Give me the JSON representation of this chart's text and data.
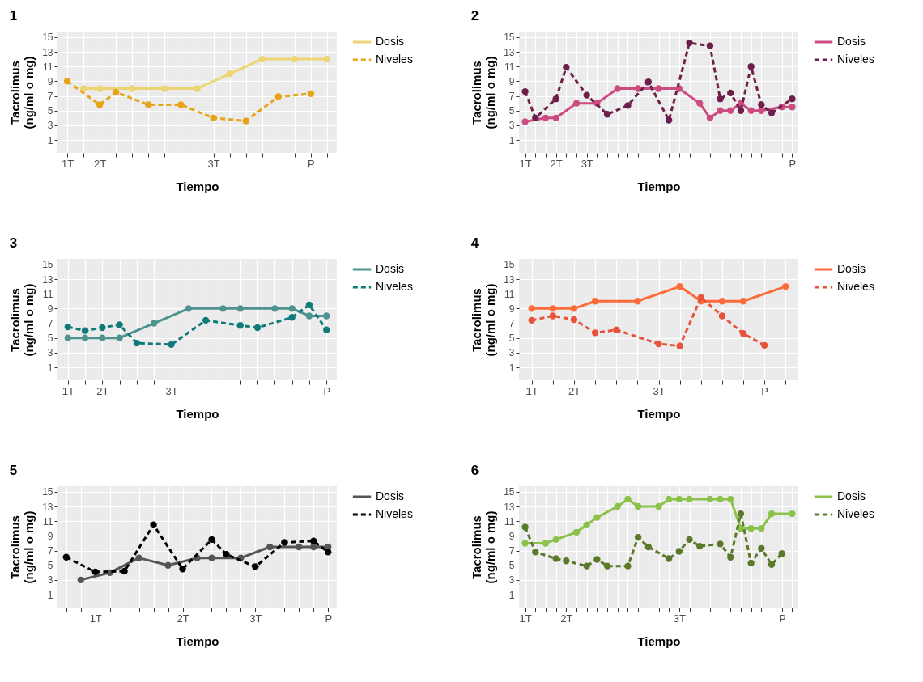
{
  "chart_data": [
    {
      "type": "line",
      "title": "1",
      "xlabel": "Tiempo",
      "ylabel": "Tacrolimus\n(ng/ml o mg)",
      "categories": [
        "1T",
        null,
        "2T",
        null,
        null,
        null,
        null,
        null,
        null,
        "3T",
        null,
        null,
        null,
        null,
        null,
        "P",
        null
      ],
      "ylim": [
        -0.75,
        15.75
      ],
      "yticks": [
        1,
        3,
        5,
        7,
        9,
        11,
        13,
        15
      ],
      "grid": true,
      "legend": "right",
      "marker": "circle",
      "series": [
        {
          "name": "Dosis",
          "color": "#ecd572",
          "line_style": "solid",
          "values": [
            null,
            8,
            8,
            null,
            8,
            null,
            8,
            null,
            8,
            null,
            10,
            null,
            12,
            null,
            12,
            null,
            12
          ]
        },
        {
          "name": "Niveles",
          "color": "#e8a317",
          "line_style": "dashed",
          "values": [
            9,
            null,
            5.8,
            7.5,
            null,
            5.8,
            null,
            5.8,
            null,
            4.0,
            null,
            3.6,
            null,
            6.9,
            null,
            7.3,
            null
          ]
        }
      ]
    },
    {
      "type": "line",
      "title": "2",
      "xlabel": "Tiempo",
      "ylabel": "Tacrolimus\n(ng/ml o mg)",
      "categories": [
        "1T",
        null,
        null,
        "2T",
        null,
        null,
        "3T",
        null,
        null,
        null,
        null,
        null,
        null,
        null,
        null,
        null,
        null,
        null,
        null,
        null,
        null,
        null,
        null,
        null,
        null,
        null,
        "P"
      ],
      "ylim": [
        -0.75,
        15.75
      ],
      "yticks": [
        1,
        3,
        5,
        7,
        9,
        11,
        13,
        15
      ],
      "grid": true,
      "legend": "right",
      "marker": "circle",
      "series": [
        {
          "name": "Dosis",
          "color": "#cc4c82",
          "line_style": "solid",
          "values": [
            3.5,
            null,
            4,
            4,
            null,
            6,
            null,
            6,
            null,
            8,
            null,
            8,
            null,
            8,
            null,
            8,
            null,
            6,
            4,
            5,
            5,
            6,
            5,
            5,
            null,
            5.5,
            5.5
          ]
        },
        {
          "name": "Niveles",
          "color": "#6e1e4b",
          "line_style": "dashed",
          "values": [
            7.6,
            4.0,
            null,
            6.6,
            10.9,
            null,
            7.1,
            null,
            4.5,
            null,
            5.7,
            null,
            8.9,
            null,
            3.7,
            null,
            14.2,
            null,
            13.8,
            6.6,
            7.4,
            5.0,
            11.0,
            5.8,
            4.7,
            null,
            6.6
          ]
        }
      ]
    },
    {
      "type": "line",
      "title": "3",
      "xlabel": "Tiempo",
      "ylabel": "Tacrolimus\n(ng/ml o mg)",
      "categories": [
        "1T",
        null,
        "2T",
        null,
        null,
        null,
        "3T",
        null,
        null,
        null,
        null,
        null,
        null,
        null,
        null,
        "P"
      ],
      "ylim": [
        -0.75,
        15.75
      ],
      "yticks": [
        1,
        3,
        5,
        7,
        9,
        11,
        13,
        15
      ],
      "grid": true,
      "legend": "right",
      "marker": "circle",
      "series": [
        {
          "name": "Dosis",
          "color": "#4f9391",
          "line_style": "solid",
          "values": [
            5,
            5,
            5,
            5,
            null,
            7,
            null,
            9,
            null,
            9,
            9,
            null,
            9,
            9,
            8,
            8
          ]
        },
        {
          "name": "Niveles",
          "color": "#0f7a78",
          "line_style": "dashed",
          "values": [
            6.5,
            6.0,
            6.4,
            6.8,
            4.3,
            null,
            4.1,
            null,
            7.4,
            null,
            6.7,
            6.4,
            null,
            7.8,
            9.5,
            6.1
          ]
        }
      ]
    },
    {
      "type": "line",
      "title": "4",
      "xlabel": "Tiempo",
      "ylabel": "Tacrolimus\n(ng/ml o mg)",
      "categories": [
        "1T",
        null,
        "2T",
        null,
        null,
        null,
        "3T",
        null,
        null,
        null,
        null,
        "P",
        null
      ],
      "ylim": [
        -0.75,
        15.75
      ],
      "yticks": [
        1,
        3,
        5,
        7,
        9,
        11,
        13,
        15
      ],
      "grid": true,
      "legend": "right",
      "marker": "circle",
      "series": [
        {
          "name": "Dosis",
          "color": "#fe6b3a",
          "line_style": "solid",
          "values": [
            9,
            9,
            9,
            10,
            null,
            10,
            null,
            12,
            10,
            10,
            10,
            null,
            12
          ]
        },
        {
          "name": "Niveles",
          "color": "#e8533c",
          "line_style": "dashed",
          "values": [
            7.4,
            8.0,
            7.5,
            5.7,
            6.1,
            null,
            4.2,
            3.9,
            10.5,
            8.0,
            5.6,
            4.0,
            null
          ]
        }
      ]
    },
    {
      "type": "line",
      "title": "5",
      "xlabel": "Tiempo",
      "ylabel": "Tacrolimus\n(ng/ml o mg)",
      "categories": [
        null,
        null,
        "1T",
        null,
        null,
        null,
        null,
        null,
        "2T",
        null,
        null,
        null,
        null,
        "3T",
        null,
        null,
        null,
        null,
        "P"
      ],
      "ylim": [
        -0.75,
        15.75
      ],
      "yticks": [
        1,
        3,
        5,
        7,
        9,
        11,
        13,
        15
      ],
      "grid": true,
      "legend": "right",
      "marker": "circle",
      "series": [
        {
          "name": "Dosis",
          "color": "#555555",
          "line_style": "solid",
          "values": [
            null,
            3,
            null,
            4,
            null,
            6,
            null,
            5,
            null,
            6,
            6,
            null,
            6,
            null,
            7.5,
            null,
            7.5,
            7.5,
            7.5
          ]
        },
        {
          "name": "Niveles",
          "color": "#000000",
          "line_style": "dashed",
          "values": [
            6.1,
            null,
            4.1,
            null,
            4.2,
            null,
            10.5,
            null,
            4.5,
            null,
            8.5,
            6.5,
            null,
            4.8,
            null,
            8.1,
            null,
            8.3,
            6.8
          ]
        }
      ]
    },
    {
      "type": "line",
      "title": "6",
      "xlabel": "Tiempo",
      "ylabel": "Tacrolimus\n(ng/ml o mg)",
      "categories": [
        "1T",
        null,
        null,
        null,
        "2T",
        null,
        null,
        null,
        null,
        null,
        null,
        null,
        null,
        null,
        null,
        "3T",
        null,
        null,
        null,
        null,
        null,
        null,
        null,
        null,
        null,
        "P",
        null
      ],
      "ylim": [
        -0.75,
        15.75
      ],
      "yticks": [
        1,
        3,
        5,
        7,
        9,
        11,
        13,
        15
      ],
      "grid": true,
      "legend": "right",
      "marker": "circle",
      "series": [
        {
          "name": "Dosis",
          "color": "#8bc34a",
          "line_style": "solid",
          "values": [
            8,
            null,
            8,
            8.5,
            null,
            9.5,
            10.5,
            11.5,
            null,
            13,
            14,
            13,
            null,
            13,
            14,
            14,
            14,
            null,
            14,
            14,
            14,
            10,
            10,
            10,
            12,
            null,
            12
          ]
        },
        {
          "name": "Niveles",
          "color": "#5a7a2a",
          "line_style": "dashed",
          "values": [
            10.2,
            6.8,
            null,
            5.9,
            5.6,
            null,
            4.9,
            5.8,
            4.9,
            null,
            4.9,
            8.8,
            7.5,
            null,
            5.9,
            6.9,
            8.5,
            7.6,
            null,
            7.9,
            6.1,
            12.0,
            5.3,
            7.3,
            5.1,
            6.6,
            null
          ]
        }
      ]
    }
  ]
}
